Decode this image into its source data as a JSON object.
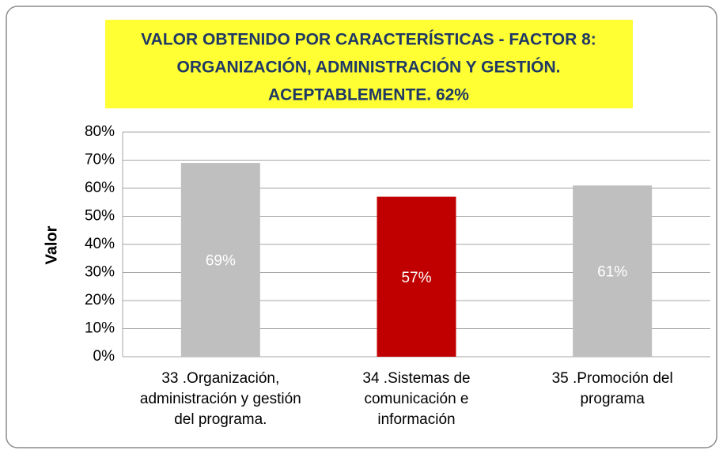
{
  "chart_data": {
    "type": "bar",
    "title": [
      "VALOR OBTENIDO POR CARACTERÍSTICAS - FACTOR 8:",
      "ORGANIZACIÓN, ADMINISTRACIÓN Y GESTIÓN.",
      "ACEPTABLEMENTE.  62%"
    ],
    "y_label": "Valor",
    "categories": [
      "33 .Organización, administración y gestión del programa.",
      "34 .Sistemas de comunicación e información",
      "35 .Promoción del programa"
    ],
    "values": [
      69,
      57,
      61
    ],
    "value_labels": [
      "69%",
      "57%",
      "61%"
    ],
    "colors": [
      "#bfbfbf",
      "#c00000",
      "#bfbfbf"
    ],
    "ylim": [
      0,
      80
    ],
    "yticks": [
      {
        "value": 0,
        "label": "0%"
      },
      {
        "value": 10,
        "label": "10%"
      },
      {
        "value": 20,
        "label": "20%"
      },
      {
        "value": 30,
        "label": "30%"
      },
      {
        "value": 40,
        "label": "40%"
      },
      {
        "value": 50,
        "label": "50%"
      },
      {
        "value": 60,
        "label": "60%"
      },
      {
        "value": 70,
        "label": "70%"
      },
      {
        "value": 80,
        "label": "80%"
      }
    ],
    "grid": true
  }
}
